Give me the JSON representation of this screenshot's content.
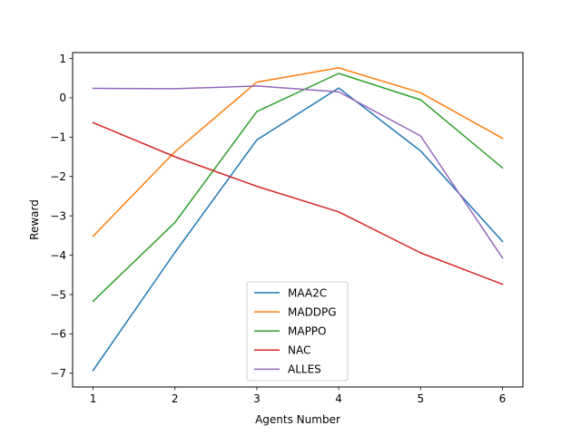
{
  "chart_data": {
    "type": "line",
    "title": "",
    "xlabel": "Agents Number",
    "ylabel": "Reward",
    "x": [
      1,
      2,
      3,
      4,
      5,
      6
    ],
    "xticks": [
      1,
      2,
      3,
      4,
      5,
      6
    ],
    "yticks": [
      1,
      0,
      -1,
      -2,
      -3,
      -4,
      -5,
      -6,
      -7
    ],
    "xlim": [
      0.75,
      6.25
    ],
    "ylim": [
      -7.35,
      1.15
    ],
    "grid": false,
    "legend_position": "lower-center",
    "series": [
      {
        "name": "MAA2C",
        "color": "#1f77b4",
        "values": [
          -6.93,
          -3.93,
          -1.07,
          0.25,
          -1.35,
          -3.65
        ]
      },
      {
        "name": "MADDPG",
        "color": "#ff7f0e",
        "values": [
          -3.52,
          -1.37,
          0.4,
          0.76,
          0.13,
          -1.03
        ]
      },
      {
        "name": "MAPPO",
        "color": "#2ca02c",
        "values": [
          -5.17,
          -3.17,
          -0.35,
          0.62,
          -0.05,
          -1.78
        ]
      },
      {
        "name": "NAC",
        "color": "#d62728",
        "values": [
          -0.63,
          -1.5,
          -2.25,
          -2.9,
          -3.94,
          -4.74
        ]
      },
      {
        "name": "ALLES",
        "color": "#9467bd",
        "values": [
          0.24,
          0.23,
          0.3,
          0.15,
          -0.97,
          -4.07
        ]
      }
    ]
  }
}
